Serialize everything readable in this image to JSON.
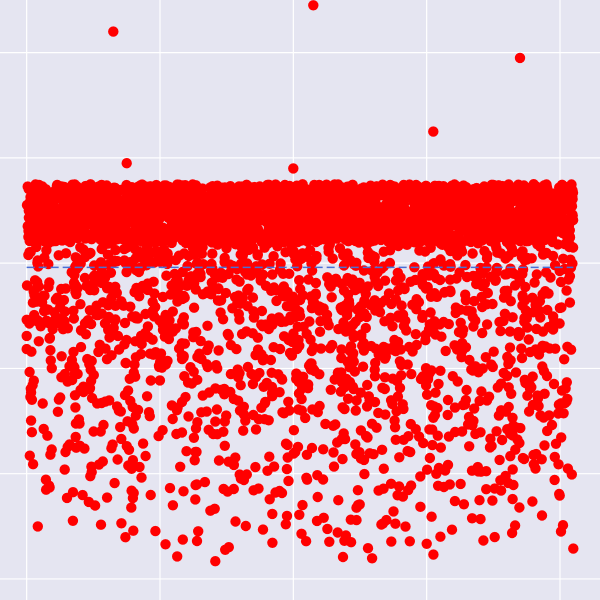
{
  "chart_data": {
    "type": "scatter",
    "title": "",
    "xlabel": "",
    "ylabel": "",
    "xlim": [
      -0.2,
      4.3
    ],
    "ylim": [
      -0.2,
      5.5
    ],
    "grid": true,
    "x_gridlines": [
      0,
      1,
      2,
      3,
      4
    ],
    "y_gridlines": [
      0,
      1,
      2,
      3,
      4,
      5
    ],
    "point_color": "#ff0000",
    "background_color": "#e5e5f1",
    "grid_color": "#ffffff",
    "series": [
      {
        "marker": "circle",
        "x_range": [
          0,
          4.1
        ],
        "dense_band": {
          "count": 2600,
          "y_range": [
            3.2,
            3.75
          ]
        },
        "scattered_below": {
          "count": 1500,
          "y_range": [
            0.1,
            3.2
          ]
        },
        "outliers": [
          {
            "x": 0.65,
            "y": 5.2
          },
          {
            "x": 2.15,
            "y": 5.45
          },
          {
            "x": 3.7,
            "y": 4.95
          },
          {
            "x": 3.05,
            "y": 4.25
          },
          {
            "x": 0.75,
            "y": 3.95
          },
          {
            "x": 2.0,
            "y": 3.9
          }
        ]
      }
    ],
    "reference_line": {
      "orientation": "horizontal",
      "y": 2.96,
      "x_range": [
        0,
        4.1
      ],
      "style": "dashed",
      "color": "#4a6fd6"
    }
  }
}
